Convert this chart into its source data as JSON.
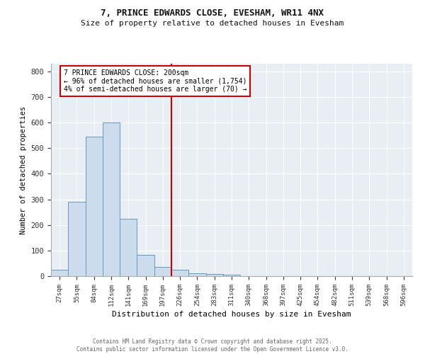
{
  "title1": "7, PRINCE EDWARDS CLOSE, EVESHAM, WR11 4NX",
  "title2": "Size of property relative to detached houses in Evesham",
  "xlabel": "Distribution of detached houses by size in Evesham",
  "ylabel": "Number of detached properties",
  "bar_labels": [
    "27sqm",
    "55sqm",
    "84sqm",
    "112sqm",
    "141sqm",
    "169sqm",
    "197sqm",
    "226sqm",
    "254sqm",
    "283sqm",
    "311sqm",
    "340sqm",
    "368sqm",
    "397sqm",
    "425sqm",
    "454sqm",
    "482sqm",
    "511sqm",
    "539sqm",
    "568sqm",
    "596sqm"
  ],
  "bar_values": [
    25,
    290,
    545,
    600,
    225,
    83,
    37,
    25,
    10,
    8,
    5,
    0,
    0,
    0,
    0,
    0,
    0,
    0,
    0,
    0,
    0
  ],
  "bar_color": "#ccdcec",
  "bar_edge_color": "#6699bb",
  "background_color": "#e8eef4",
  "grid_color": "#ffffff",
  "annotation_text": "7 PRINCE EDWARDS CLOSE: 200sqm\n← 96% of detached houses are smaller (1,754)\n4% of semi-detached houses are larger (70) →",
  "vline_x_index": 6,
  "vline_color": "#cc0000",
  "annotation_box_color": "#ffffff",
  "annotation_box_edge": "#cc0000",
  "ylim": [
    0,
    830
  ],
  "yticks": [
    0,
    100,
    200,
    300,
    400,
    500,
    600,
    700,
    800
  ],
  "fig_bg": "#ffffff",
  "footer1": "Contains HM Land Registry data © Crown copyright and database right 2025.",
  "footer2": "Contains public sector information licensed under the Open Government Licence v3.0."
}
